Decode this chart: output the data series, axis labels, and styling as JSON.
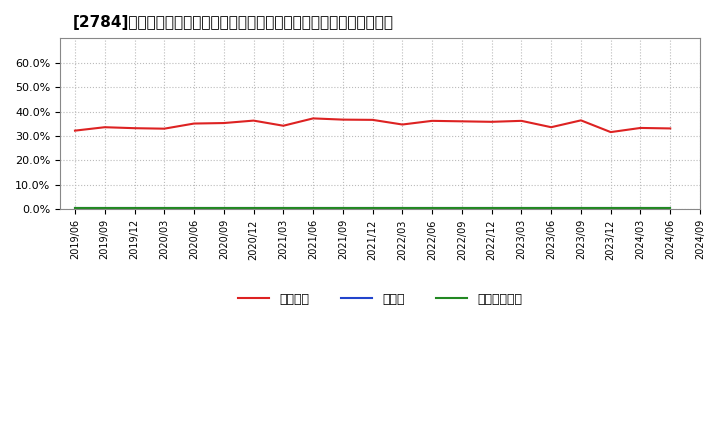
{
  "title": "[2784]　自己資本、のれん、繰延税金資産の総資産に対する比率の推移",
  "title_fontsize": 11,
  "background_color": "#ffffff",
  "plot_bg_color": "#ffffff",
  "grid_color": "#bbbbbb",
  "ylim": [
    0.0,
    0.7
  ],
  "yticks": [
    0.0,
    0.1,
    0.2,
    0.3,
    0.4,
    0.5,
    0.6
  ],
  "ytick_labels": [
    "0.0%",
    "10.0%",
    "20.0%",
    "30.0%",
    "40.0%",
    "50.0%",
    "60.0%"
  ],
  "x_dates": [
    "2019/06",
    "2019/09",
    "2019/12",
    "2020/03",
    "2020/06",
    "2020/09",
    "2020/12",
    "2021/03",
    "2021/06",
    "2021/09",
    "2021/12",
    "2022/03",
    "2022/06",
    "2022/09",
    "2022/12",
    "2023/03",
    "2023/06",
    "2023/09",
    "2023/12",
    "2024/03",
    "2024/06"
  ],
  "series_jiko": [
    0.322,
    0.336,
    0.332,
    0.33,
    0.351,
    0.353,
    0.363,
    0.342,
    0.372,
    0.367,
    0.366,
    0.347,
    0.362,
    0.36,
    0.358,
    0.362,
    0.336,
    0.364,
    0.316,
    0.333,
    0.331
  ],
  "series_noren": [
    0.004,
    0.004,
    0.004,
    0.004,
    0.004,
    0.004,
    0.004,
    0.004,
    0.004,
    0.004,
    0.004,
    0.004,
    0.004,
    0.004,
    0.004,
    0.004,
    0.004,
    0.004,
    0.004,
    0.004,
    0.004
  ],
  "series_kuenze": [
    0.005,
    0.005,
    0.005,
    0.005,
    0.005,
    0.005,
    0.005,
    0.005,
    0.005,
    0.005,
    0.005,
    0.005,
    0.005,
    0.005,
    0.005,
    0.005,
    0.005,
    0.005,
    0.005,
    0.005,
    0.005
  ],
  "color_jiko": "#dd2222",
  "color_noren": "#2244cc",
  "color_kuenze": "#228822",
  "legend_label_jiko": "自己資本",
  "legend_label_noren": "のれん",
  "legend_label_kuenze": "繰延税金資産",
  "x_tick_labels": [
    "2019/06",
    "2019/09",
    "2019/12",
    "2020/03",
    "2020/06",
    "2020/09",
    "2020/12",
    "2021/03",
    "2021/06",
    "2021/09",
    "2021/12",
    "2022/03",
    "2022/06",
    "2022/09",
    "2022/12",
    "2023/03",
    "2023/06",
    "2023/09",
    "2023/12",
    "2024/03",
    "2024/06",
    "2024/09"
  ]
}
